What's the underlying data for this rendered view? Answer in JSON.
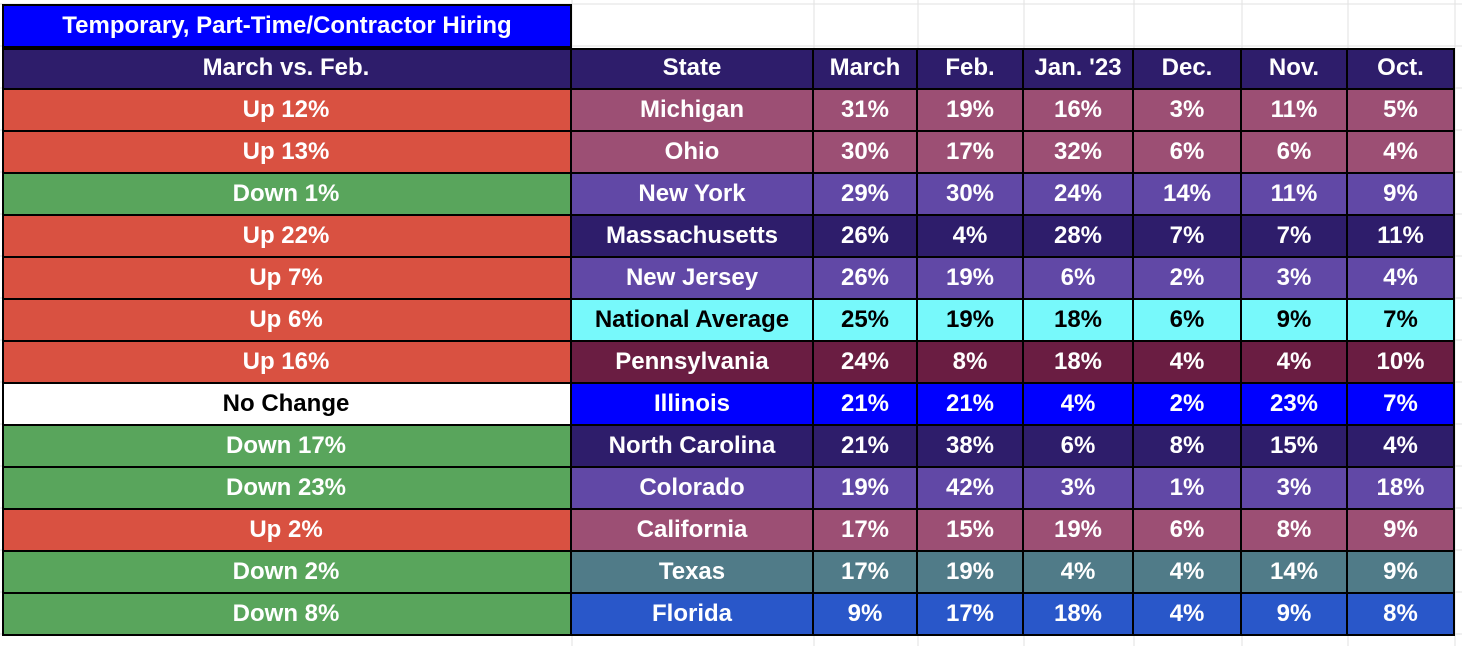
{
  "title": "Temporary, Part-Time/Contractor Hiring",
  "headers": [
    "March vs. Feb.",
    "State",
    "March",
    "Feb.",
    "Jan. '23",
    "Dec.",
    "Nov.",
    "Oct."
  ],
  "colors": {
    "header": "#2e1d6b",
    "title": "#0000ff",
    "up": "#d95141",
    "down": "#59a55c",
    "no_change": "#ffffff"
  },
  "rows": [
    {
      "change": "Up 12%",
      "trend": "up",
      "state": "Michigan",
      "color": "#9c4f74",
      "values": [
        "31%",
        "19%",
        "16%",
        "3%",
        "11%",
        "5%"
      ]
    },
    {
      "change": "Up 13%",
      "trend": "up",
      "state": "Ohio",
      "color": "#9c4f74",
      "values": [
        "30%",
        "17%",
        "32%",
        "6%",
        "6%",
        "4%"
      ]
    },
    {
      "change": "Down 1%",
      "trend": "down",
      "state": "New York",
      "color": "#6148a6",
      "values": [
        "29%",
        "30%",
        "24%",
        "14%",
        "11%",
        "9%"
      ]
    },
    {
      "change": "Up 22%",
      "trend": "up",
      "state": "Massachusetts",
      "color": "#2e1d6b",
      "values": [
        "26%",
        "4%",
        "28%",
        "7%",
        "7%",
        "11%"
      ]
    },
    {
      "change": "Up 7%",
      "trend": "up",
      "state": "New Jersey",
      "color": "#6148a6",
      "values": [
        "26%",
        "19%",
        "6%",
        "2%",
        "3%",
        "4%"
      ]
    },
    {
      "change": "Up 6%",
      "trend": "up",
      "state": "National Average",
      "color": "#77f9fb",
      "dark": true,
      "values": [
        "25%",
        "19%",
        "18%",
        "6%",
        "9%",
        "7%"
      ]
    },
    {
      "change": "Up 16%",
      "trend": "up",
      "state": "Pennsylvania",
      "color": "#6a1d42",
      "values": [
        "24%",
        "8%",
        "18%",
        "4%",
        "4%",
        "10%"
      ]
    },
    {
      "change": "No Change",
      "trend": "none",
      "state": "Illinois",
      "color": "#0000ff",
      "values": [
        "21%",
        "21%",
        "4%",
        "2%",
        "23%",
        "7%"
      ]
    },
    {
      "change": "Down 17%",
      "trend": "down",
      "state": "North Carolina",
      "color": "#2e1d6b",
      "values": [
        "21%",
        "38%",
        "6%",
        "8%",
        "15%",
        "4%"
      ]
    },
    {
      "change": "Down 23%",
      "trend": "down",
      "state": "Colorado",
      "color": "#6148a6",
      "values": [
        "19%",
        "42%",
        "3%",
        "1%",
        "3%",
        "18%"
      ]
    },
    {
      "change": "Up 2%",
      "trend": "up",
      "state": "California",
      "color": "#9c4f74",
      "values": [
        "17%",
        "15%",
        "19%",
        "6%",
        "8%",
        "9%"
      ]
    },
    {
      "change": "Down 2%",
      "trend": "down",
      "state": "Texas",
      "color": "#507b88",
      "values": [
        "17%",
        "19%",
        "4%",
        "4%",
        "14%",
        "9%"
      ]
    },
    {
      "change": "Down 8%",
      "trend": "down",
      "state": "Florida",
      "color": "#2957c9",
      "values": [
        "9%",
        "17%",
        "18%",
        "4%",
        "9%",
        "8%"
      ]
    }
  ]
}
